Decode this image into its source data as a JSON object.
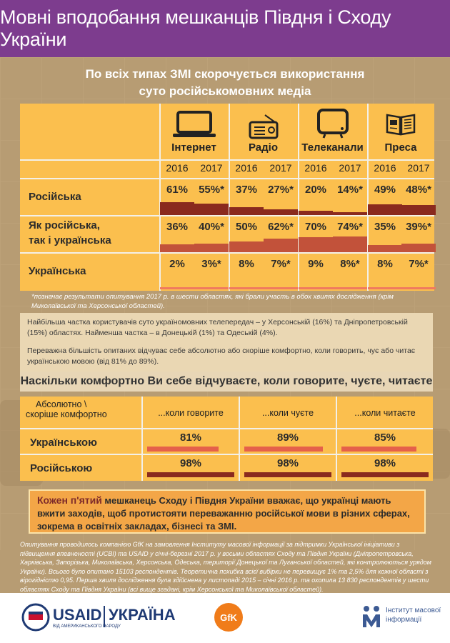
{
  "header": {
    "title": "Мовні вподобання мешканців Півдня і Сходу України"
  },
  "subtitle": {
    "line1": "По всіх типах ЗМІ скорочується використання",
    "line2": "суто російськомовних медіа"
  },
  "media": {
    "columns": [
      {
        "name": "Інтернет",
        "icon": "laptop-icon"
      },
      {
        "name": "Радіо",
        "icon": "radio-icon"
      },
      {
        "name": "Телеканали",
        "icon": "tv-icon"
      },
      {
        "name": "Преса",
        "icon": "newspaper-icon"
      }
    ],
    "years": [
      "2016",
      "2017",
      "2016",
      "2017",
      "2016",
      "2017",
      "2016",
      "2017"
    ],
    "rows": [
      {
        "label1": "Російська",
        "label2": "",
        "values": [
          "61%",
          "55%*",
          "37%",
          "27%*",
          "20%",
          "14%*",
          "49%",
          "48%*"
        ],
        "numeric": [
          61,
          55,
          37,
          27,
          20,
          14,
          49,
          48
        ],
        "color": "#8a2a1e"
      },
      {
        "label1": "Як російська,",
        "label2": "так і українська",
        "values": [
          "36%",
          "40%*",
          "50%",
          "62%*",
          "70%",
          "74%*",
          "35%",
          "39%*"
        ],
        "numeric": [
          36,
          40,
          50,
          62,
          70,
          74,
          35,
          39
        ],
        "color": "#c2523a"
      },
      {
        "label1": "Українська",
        "label2": "",
        "values": [
          "2%",
          "3%*",
          "8%",
          "7%*",
          "9%",
          "8%*",
          "8%",
          "7%*"
        ],
        "numeric": [
          2,
          3,
          8,
          7,
          9,
          8,
          8,
          7
        ],
        "color": "#f07a5e"
      }
    ]
  },
  "footnote": "*позначає результати опитування 2017 р. в шести областях, які брали участь в обох хвилях дослідження (крім Миколаївської та Херсонської областей).",
  "paragraph1": "Найбільша частка користувачів суто україномовних телепередач – у Херсонській (16%) та Дніпропетровській (15%) областях. Найменша частка – в Донецькій (1%) та Одеській (4%).",
  "paragraph2": "Переважна більшість опитаних відчуває себе абсолютно або скоріше комфортно, коли говорить, чує або читає українською мовою (від 81% до 89%).",
  "comfort": {
    "title": "Наскільки комфортно Ви себе відчуваєте, коли говорите, чуєте, читаєте",
    "corner1": "Абсолютно \\",
    "corner2": "скоріше комфортно",
    "headers": [
      "...коли говорите",
      "...коли чуєте",
      "...коли читаєте"
    ],
    "rows": [
      {
        "label": "Українською",
        "values": [
          "81%",
          "89%",
          "85%"
        ],
        "numeric": [
          81,
          89,
          85
        ],
        "color": "#e5604a"
      },
      {
        "label": "Російською",
        "values": [
          "98%",
          "98%",
          "98%"
        ],
        "numeric": [
          98,
          98,
          98
        ],
        "color": "#8a2a1e"
      }
    ]
  },
  "highlight": {
    "accent": "Кожен п'ятий",
    "text": " мешканець Сходу і Півдня України вважає, що українці мають вжити заходів, щоб протистояти переважанню російської мови в різних сферах, зокрема в освітніх закладах, бізнесі та ЗМІ."
  },
  "methodology": "Опитування проводилось компанією GfK на замовлення Інституту масової інформації за підтримки Української ініціативи з підвищення впевненості (UCBI) та USAID у січні-березні 2017 р. у восьми областях Сходу та Півдня України (Дніпропетровська, Харківська, Запорізька, Миколаївська, Херсонська, Одеська, території Донецької та Луганської областей, які контролюються урядом України). Всього було опитано 15103 респондентів. Теоретична похибка всієї вибірки не перевищує 1% та 2,5% для кожної області з вірогідністю 0,95. Перша хвиля дослідження була здійснена у листопаді 2015 – січні 2016 р. та охопила 13 830 респондентів у шести областях Сходу та Півдня України (всі вище згадані, крім Херсонської та Миколаївської областей).",
  "footer": {
    "usaid": "USAID",
    "usaid_sub": "ВІД АМЕРИКАНСЬКОГО НАРОДУ",
    "ukraine": "УКРАЇНА",
    "gfk": "GfK",
    "imi_line1": "Інститут масової",
    "imi_line2": "інформації"
  }
}
